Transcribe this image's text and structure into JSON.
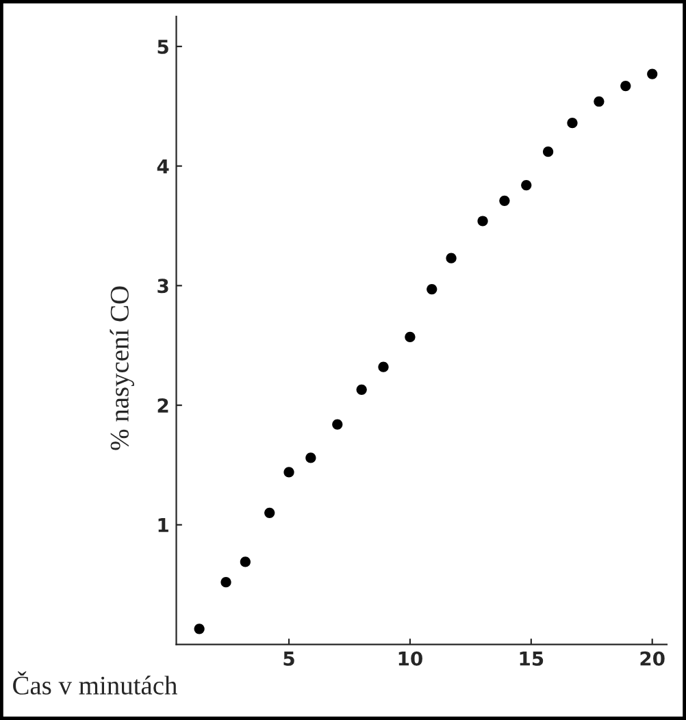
{
  "chart_data": {
    "type": "scatter",
    "xlabel": "Čas v minutách",
    "ylabel": "% nasycení CO",
    "x": [
      1.3,
      2.4,
      3.2,
      4.2,
      5.0,
      5.9,
      7.0,
      8.0,
      8.9,
      10.0,
      10.9,
      11.7,
      13.0,
      13.9,
      14.8,
      15.7,
      16.7,
      17.8,
      18.9,
      20.0
    ],
    "series": [
      {
        "color": "#000000",
        "values": [
          0.13,
          0.52,
          0.69,
          1.1,
          1.44,
          1.56,
          1.84,
          2.13,
          2.32,
          2.57,
          2.97,
          3.23,
          3.54,
          3.71,
          3.84,
          4.12,
          4.36,
          4.54,
          4.67,
          4.77
        ]
      }
    ],
    "xlim": [
      0.35,
      20.6
    ],
    "ylim": [
      0,
      5.25
    ],
    "xticks": [
      5,
      10,
      15,
      20
    ],
    "yticks": [
      1,
      2,
      3,
      4,
      5
    ],
    "marker": "circle",
    "grid": false,
    "legend": false
  }
}
